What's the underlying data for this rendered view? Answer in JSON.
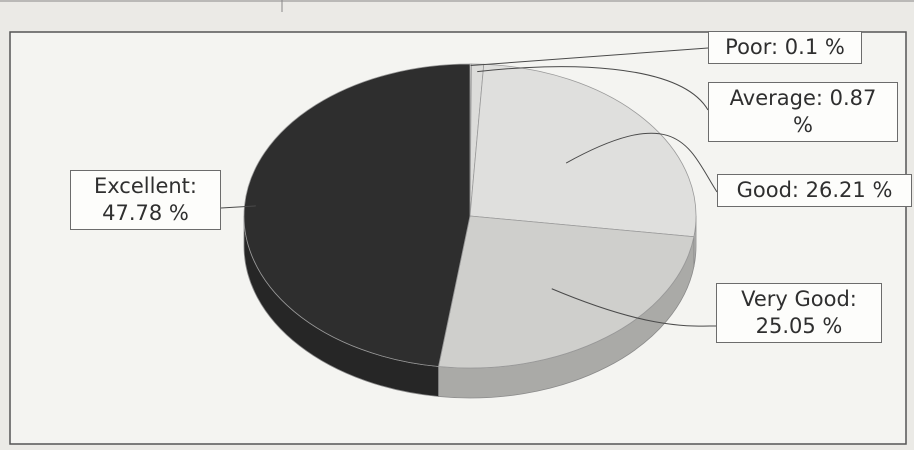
{
  "chart_data": {
    "type": "pie",
    "title": "",
    "legend": "none",
    "slices": [
      {
        "name": "Poor",
        "value": 0.1,
        "label_name": "Poor:",
        "label_value": "0.1 %",
        "color": "#e6e6e4"
      },
      {
        "name": "Average",
        "value": 0.87,
        "label_name": "Average: 0.87",
        "label_value": "%",
        "color": "#dcdcda"
      },
      {
        "name": "Good",
        "value": 26.21,
        "label_name": "Good:",
        "label_value": "26.21 %",
        "color": "#dfdfdd"
      },
      {
        "name": "Very Good",
        "value": 25.05,
        "label_name": "Very Good:",
        "label_value": "25.05 %",
        "color": "#cfcfcc"
      },
      {
        "name": "Excellent",
        "value": 47.78,
        "label_name": "Excellent:",
        "label_value": "47.78 %",
        "color": "#2e2e2e"
      }
    ]
  }
}
